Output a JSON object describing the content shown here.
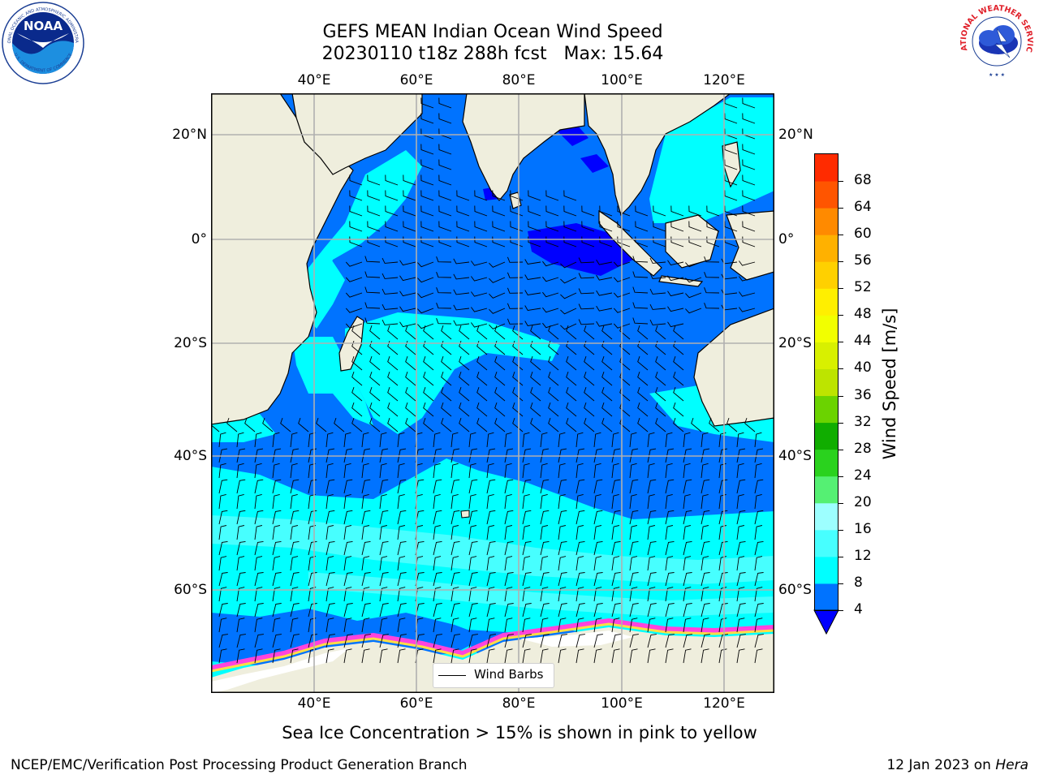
{
  "header": {
    "title_line1": "GEFS MEAN Indian Ocean Wind Speed",
    "title_line2": "20230110 t18z 288h fcst   Max: 15.64"
  },
  "logos": {
    "noaa_text": "NOAA",
    "noaa_ring_top": "NATIONAL OCEANIC AND ATMOSPHERIC ADMINISTRATION",
    "noaa_ring_bottom": "U.S. DEPARTMENT OF COMMERCE",
    "nws_ring": "NATIONAL WEATHER SERVICE"
  },
  "map": {
    "lon_labels": [
      "40°E",
      "60°E",
      "80°E",
      "100°E",
      "120°E"
    ],
    "lat_labels": [
      "20°N",
      "0°",
      "20°S",
      "40°S",
      "60°S"
    ],
    "legend_label": "Wind Barbs",
    "colors": {
      "land": "#efeedd",
      "wind_4_8": "#0073ff",
      "wind_8_12": "#00ffff",
      "wind_12_16": "#47ffff",
      "wind_below_4": "#0000ff",
      "sea_ice": "#ff44dd",
      "sea_ice_high": "#ffdd44"
    }
  },
  "colorbar": {
    "label": "Wind Speed [m/s]",
    "ticks": [
      "4",
      "8",
      "12",
      "16",
      "20",
      "24",
      "28",
      "32",
      "36",
      "40",
      "44",
      "48",
      "52",
      "56",
      "60",
      "64",
      "68"
    ],
    "colors": [
      "#0073ff",
      "#00ffff",
      "#47ffff",
      "#9dffff",
      "#55f073",
      "#2ad21e",
      "#10ad00",
      "#6bd300",
      "#bde400",
      "#d8f000",
      "#f2ff00",
      "#ffef00",
      "#ffd000",
      "#ffb100",
      "#ff8a00",
      "#ff5500",
      "#ff2b00"
    ],
    "under_color": "#0000ff"
  },
  "footnote": "Sea Ice Concentration > 15% is shown in pink to yellow",
  "credits": {
    "left": "NCEP/EMC/Verification Post Processing Product Generation Branch",
    "right_prefix": "12 Jan 2023 on ",
    "right_system": "Hera"
  }
}
